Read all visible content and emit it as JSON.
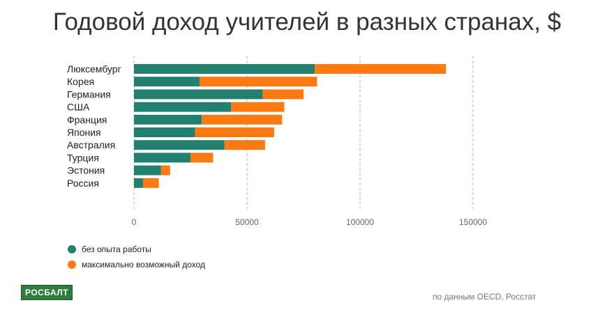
{
  "chart_data": {
    "type": "bar",
    "orientation": "horizontal",
    "stacked": true,
    "title": "Годовой доход учителей в разных странах, $",
    "categories": [
      "Люксембург",
      "Корея",
      "Германия",
      "США",
      "Франция",
      "Япония",
      "Австралия",
      "Турция",
      "Эстония",
      "Россия"
    ],
    "series": [
      {
        "name": "без опыта работы",
        "color": "#23806f",
        "values": [
          80000,
          29000,
          57000,
          43000,
          30000,
          27000,
          40000,
          25000,
          12000,
          4000
        ]
      },
      {
        "name": "максимально возможный доход",
        "color": "#fb7a12",
        "values": [
          58000,
          52000,
          18000,
          23500,
          35500,
          35000,
          18000,
          10000,
          4000,
          7000
        ]
      }
    ],
    "xlim": [
      0,
      150000
    ],
    "xticks": [
      0,
      50000,
      100000,
      150000
    ],
    "xtick_labels": [
      "0",
      "50000",
      "100000",
      "150000"
    ],
    "grid": "vertical dashed",
    "legend": "bottom-left"
  },
  "footer": {
    "brand": "РОСБАЛТ",
    "source": "по данным OECD, Росстат"
  }
}
